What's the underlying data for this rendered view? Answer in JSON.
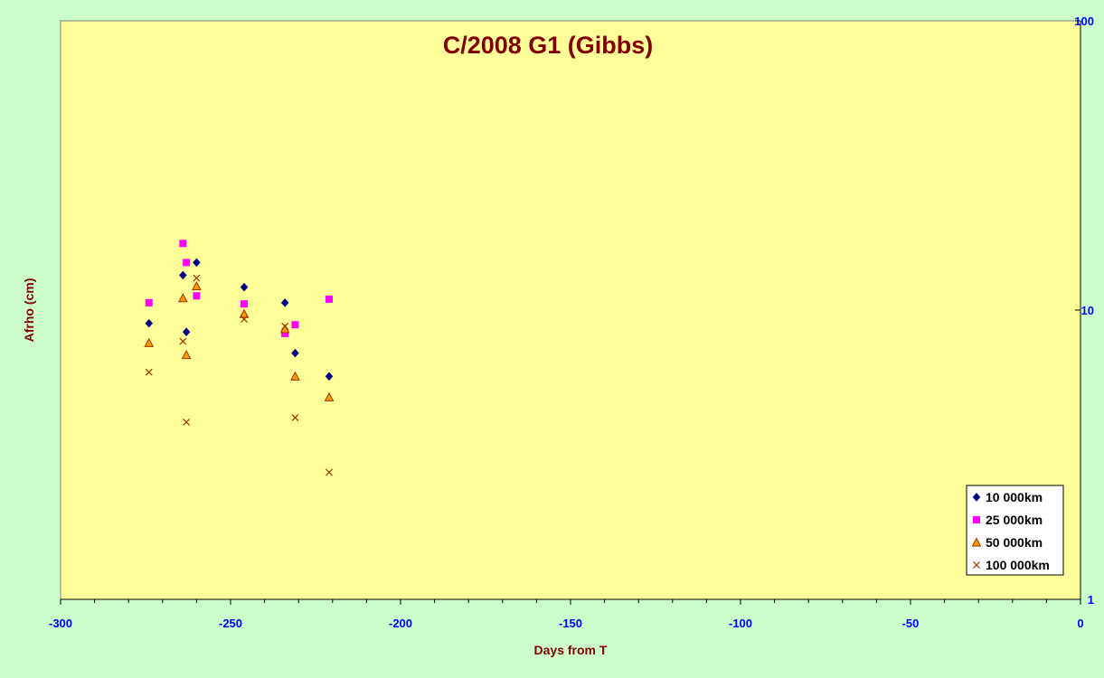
{
  "chart_data": {
    "type": "scatter",
    "title": "C/2008 G1 (Gibbs)",
    "xlabel": "Days from T",
    "ylabel": "Afrho (cm)",
    "xlim": [
      -300,
      0
    ],
    "ylim": [
      1,
      100
    ],
    "yscale": "log",
    "x_ticks": [
      "-300",
      "-250",
      "-200",
      "-150",
      "-100",
      "-50",
      "0"
    ],
    "x_tick_values": [
      -300,
      -250,
      -200,
      -150,
      -100,
      -50,
      0
    ],
    "y_ticks": [
      "1",
      "10",
      "100"
    ],
    "y_tick_values": [
      1,
      10,
      100
    ],
    "grid": false,
    "legend_position": "bottom-right",
    "colors": {
      "page_bg": "#ccffcc",
      "plot_bg": "#ffff99",
      "title": "#800000",
      "axis_title": "#800000",
      "tick_label": "#0000ff"
    },
    "series": [
      {
        "name": "10 000km",
        "marker": "diamond",
        "color": "#000080",
        "points": [
          [
            -274,
            9.0
          ],
          [
            -264,
            13.2
          ],
          [
            -263,
            8.4
          ],
          [
            -260,
            14.6
          ],
          [
            -246,
            12.0
          ],
          [
            -234,
            10.6
          ],
          [
            -231,
            7.1
          ],
          [
            -221,
            5.9
          ]
        ]
      },
      {
        "name": "25 000km",
        "marker": "square",
        "color": "#ff00ff",
        "points": [
          [
            -274,
            10.6
          ],
          [
            -264,
            17.0
          ],
          [
            -263,
            14.6
          ],
          [
            -260,
            11.2
          ],
          [
            -246,
            10.5
          ],
          [
            -234,
            8.3
          ],
          [
            -231,
            8.9
          ],
          [
            -221,
            10.9
          ]
        ]
      },
      {
        "name": "50 000km",
        "marker": "triangle",
        "color": "#ff9900",
        "stroke": "#993300",
        "points": [
          [
            -274,
            7.7
          ],
          [
            -264,
            11.0
          ],
          [
            -263,
            7.0
          ],
          [
            -260,
            12.1
          ],
          [
            -246,
            9.7
          ],
          [
            -234,
            8.6
          ],
          [
            -231,
            5.9
          ],
          [
            -221,
            5.0
          ]
        ]
      },
      {
        "name": "100 000km",
        "marker": "x",
        "color": "#993300",
        "points": [
          [
            -274,
            6.1
          ],
          [
            -264,
            7.8
          ],
          [
            -263,
            4.1
          ],
          [
            -260,
            12.9
          ],
          [
            -246,
            9.3
          ],
          [
            -234,
            8.8
          ],
          [
            -231,
            4.25
          ],
          [
            -221,
            2.75
          ]
        ]
      }
    ]
  }
}
